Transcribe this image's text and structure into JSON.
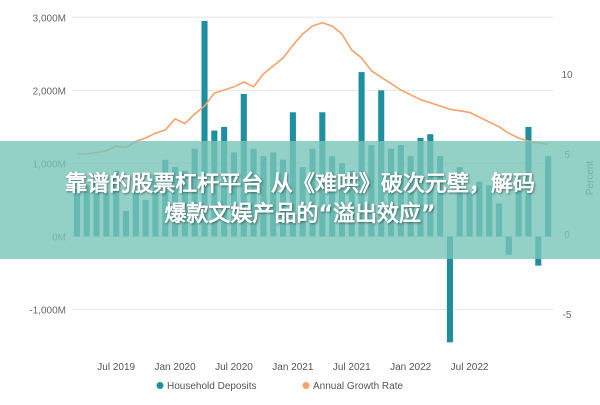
{
  "chart_data": {
    "type": "bar",
    "x_tick_labels": [
      "Jul 2019",
      "Jan 2020",
      "Jul 2020",
      "Jan 2021",
      "Jul 2021",
      "Jan 2022",
      "Jul 2022"
    ],
    "y_left": {
      "ticks": [
        "3,000M",
        "2,000M",
        "1,000M",
        "0M",
        "-1,000M"
      ],
      "ylim": [
        -1500,
        3100
      ]
    },
    "y_right": {
      "label": "Percent",
      "ticks": [
        "10",
        "5",
        "0",
        "-5"
      ],
      "ylim": [
        -7,
        14
      ]
    },
    "series": [
      {
        "name": "Household Deposits",
        "type": "bar",
        "color": "#1f8fa0",
        "values": [
          650,
          700,
          850,
          600,
          900,
          350,
          650,
          500,
          850,
          1050,
          950,
          900,
          1200,
          2950,
          1450,
          1500,
          1150,
          1950,
          1200,
          1100,
          1150,
          1050,
          1700,
          950,
          1200,
          1700,
          1100,
          1000,
          900,
          2250,
          1250,
          2000,
          1200,
          1250,
          1100,
          1350,
          1400,
          1100,
          -1450,
          950,
          600,
          750,
          700,
          450,
          -250,
          800,
          1500,
          -400,
          1100
        ]
      },
      {
        "name": "Annual Growth Rate",
        "type": "line",
        "color": "#f5a26a",
        "values": [
          5.0,
          5.0,
          5.1,
          5.2,
          5.5,
          5.4,
          5.8,
          6.0,
          6.3,
          6.5,
          7.2,
          6.9,
          7.5,
          8.0,
          8.8,
          9.0,
          9.2,
          9.5,
          9.2,
          10.0,
          10.5,
          11.0,
          11.8,
          12.5,
          13.0,
          13.2,
          13.0,
          12.5,
          11.5,
          11.0,
          10.2,
          9.8,
          9.4,
          9.0,
          8.7,
          8.4,
          8.2,
          8.0,
          7.8,
          7.7,
          7.6,
          7.3,
          7.0,
          6.7,
          6.3,
          6.0,
          5.8,
          5.7,
          5.6
        ]
      }
    ],
    "legend_position": "bottom",
    "grid": true
  },
  "overlay": {
    "line1": "靠谱的股票杠杆平台 从《难哄》破次元壁，解码",
    "line2": "爆款文娱产品的“溢出效应”"
  }
}
